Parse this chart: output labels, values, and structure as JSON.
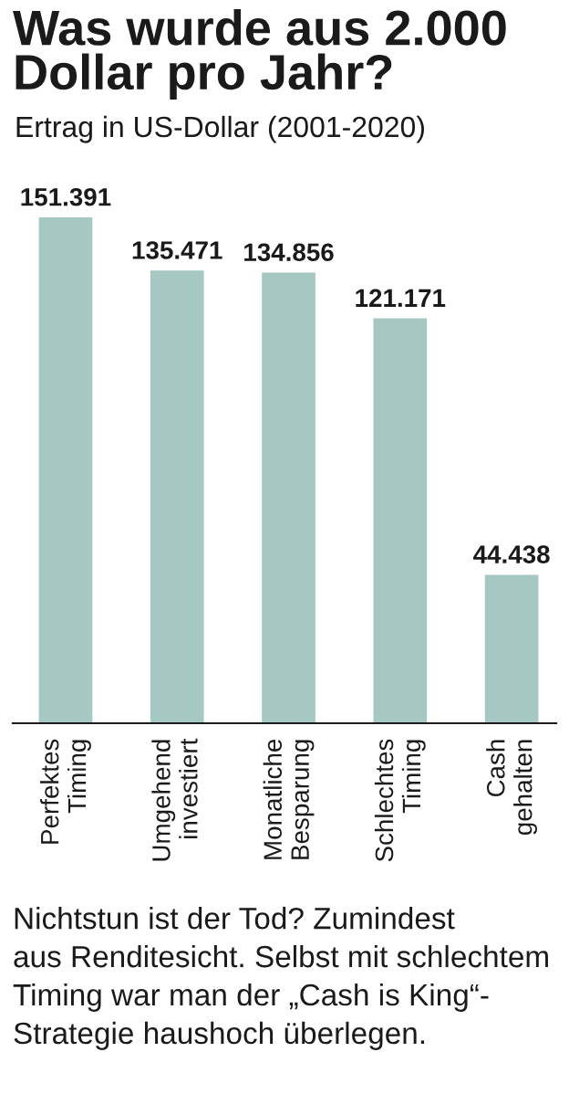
{
  "chart_data": {
    "type": "bar",
    "title": "Was wurde aus 2.000\nDollar pro Jahr?",
    "subtitle": "Ertrag in US-Dollar (2001-2020)",
    "categories": [
      "Perfektes\nTiming",
      "Umgehend\ninvestiert",
      "Monatliche\nBesparung",
      "Schlechtes\nTiming",
      "Cash\ngehalten"
    ],
    "values": [
      151391,
      135471,
      134856,
      121171,
      44438
    ],
    "color": "#a6c8c2",
    "value_labels": [
      "151.391",
      "135.471",
      "134.856",
      "121.171",
      "44.438"
    ],
    "annotations": [
      "Nichtstun ist der Tod? Zumindest\naus Renditesicht. Selbst mit schlechtem\nTiming war man der „Cash is King“-\nStrategie haushoch überlegen."
    ]
  }
}
